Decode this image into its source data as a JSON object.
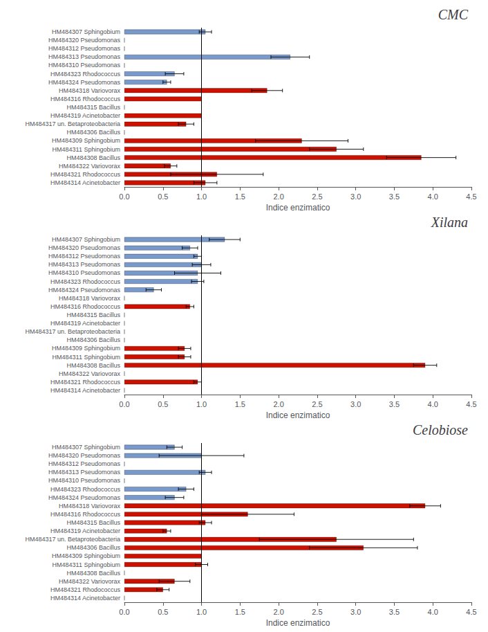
{
  "chart_data": [
    {
      "type": "bar",
      "orientation": "horizontal",
      "grid": false,
      "title": "CMC",
      "xlabel": "Indice enzimatico",
      "xlim": [
        0.0,
        4.5
      ],
      "xticks": [
        {
          "value": 0,
          "label": "0.0"
        },
        0.5,
        {
          "value": 1,
          "label": "1.0"
        },
        1.5,
        {
          "value": 2,
          "label": "2.0"
        },
        2.5,
        {
          "value": 3,
          "label": "3.0"
        },
        3.5,
        {
          "value": 4,
          "label": "4.0"
        },
        4.5
      ],
      "reference_line": 1.0,
      "categories": [
        "HM484307 Sphingobium",
        "HM484320 Pseudomonas",
        "HM484312 Pseudomonas",
        "HM484313 Pseudomonas",
        "HM484310 Pseudomonas",
        "HM484323 Rhodococcus",
        "HM484324 Pseudomonas",
        "HM484318 Variovorax",
        "HM484316 Rhodococcus",
        "HM484315 Bacillus",
        "HM484319 Acinetobacter",
        "HM484317 un. Betaproteobacteria",
        "HM484306 Bacillus",
        "HM484309 Sphingobium",
        "HM484311 Sphingobium",
        "HM484308 Bacillus",
        "HM484322 Variovorax",
        "HM484321 Rhodococcus",
        "HM484314 Acinetobacter"
      ],
      "values": [
        1.05,
        0.0,
        0.0,
        2.15,
        0.0,
        0.65,
        0.55,
        1.85,
        1.0,
        0.0,
        1.0,
        0.8,
        0.0,
        2.3,
        2.75,
        3.85,
        0.6,
        1.2,
        1.05
      ],
      "errors": [
        0.08,
        0.0,
        0.0,
        0.25,
        0.0,
        0.12,
        0.05,
        0.2,
        0.0,
        0.0,
        0.0,
        0.1,
        0.0,
        0.6,
        0.35,
        0.45,
        0.08,
        0.6,
        0.15
      ],
      "colors": [
        "#7799CC",
        "#7799CC",
        "#7799CC",
        "#7799CC",
        "#7799CC",
        "#7799CC",
        "#7799CC",
        "#CC1100",
        "#CC1100",
        "#CC1100",
        "#CC1100",
        "#CC1100",
        "#CC1100",
        "#CC1100",
        "#CC1100",
        "#CC1100",
        "#CC1100",
        "#CC1100",
        "#CC1100"
      ]
    },
    {
      "type": "bar",
      "orientation": "horizontal",
      "grid": false,
      "title": "Xilana",
      "xlabel": "Indice enzimatico",
      "xlim": [
        0.0,
        4.5
      ],
      "xticks": [
        {
          "value": 0,
          "label": "0.0"
        },
        0.5,
        {
          "value": 1,
          "label": "1.0"
        },
        1.5,
        {
          "value": 2,
          "label": "2.0"
        },
        2.5,
        {
          "value": 3,
          "label": "3.0"
        },
        3.5,
        {
          "value": 4,
          "label": "4.0"
        },
        4.5
      ],
      "reference_line": 1.0,
      "categories": [
        "HM484307 Sphingobium",
        "HM484320 Pseudomonas",
        "HM484312 Pseudomonas",
        "HM484313 Pseudomonas",
        "HM484310 Pseudomonas",
        "HM484323 Rhodococcus",
        "HM484324 Pseudomonas",
        "HM484318 Variovorax",
        "HM484316 Rhodococcus",
        "HM484315 Bacillus",
        "HM484319 Acinetobacter",
        "HM484317 un. Betaproteobacteria",
        "HM484306 Bacillus",
        "HM484309 Sphingobium",
        "HM484311 Sphingobium",
        "HM484308 Bacillus",
        "HM484322 Variovorax",
        "HM484321 Rhodococcus",
        "HM484314 Acinetobacter"
      ],
      "values": [
        1.3,
        0.85,
        0.95,
        1.0,
        0.95,
        0.95,
        0.38,
        0.0,
        0.85,
        0.0,
        0.0,
        0.0,
        0.0,
        0.78,
        0.78,
        3.9,
        0.0,
        0.95,
        0.0
      ],
      "errors": [
        0.2,
        0.1,
        0.05,
        0.12,
        0.3,
        0.08,
        0.1,
        0.0,
        0.05,
        0.0,
        0.0,
        0.0,
        0.0,
        0.08,
        0.08,
        0.15,
        0.0,
        0.05,
        0.0
      ],
      "colors": [
        "#7799CC",
        "#7799CC",
        "#7799CC",
        "#7799CC",
        "#7799CC",
        "#7799CC",
        "#7799CC",
        "#7799CC",
        "#CC1100",
        "#CC1100",
        "#CC1100",
        "#CC1100",
        "#CC1100",
        "#CC1100",
        "#CC1100",
        "#CC1100",
        "#CC1100",
        "#CC1100",
        "#CC1100"
      ]
    },
    {
      "type": "bar",
      "orientation": "horizontal",
      "grid": false,
      "title": "Celobiose",
      "xlabel": "Indice enzimatico",
      "xlim": [
        0.0,
        4.5
      ],
      "xticks": [
        {
          "value": 0,
          "label": "0.0"
        },
        0.5,
        {
          "value": 1,
          "label": "1.0"
        },
        1.5,
        {
          "value": 2,
          "label": "2.0"
        },
        2.5,
        {
          "value": 3,
          "label": "3.0"
        },
        3.5,
        {
          "value": 4,
          "label": "4.0"
        },
        4.5
      ],
      "reference_line": 1.0,
      "categories": [
        "HM484307 Sphingobium",
        "HM484320 Pseudomonas",
        "HM484312 Pseudomonas",
        "HM484313 Pseudomonas",
        "HM484310 Pseudomonas",
        "HM484323 Rhodococcus",
        "HM484324 Pseudomonas",
        "HM484318 Variovorax",
        "HM484316 Rhodococcus",
        "HM484315 Bacillus",
        "HM484319 Acinetobacter",
        "HM484317 un. Betaproteobacteria",
        "HM484306 Bacillus",
        "HM484309 Sphingobium",
        "HM484311 Sphingobium",
        "HM484308 Bacillus",
        "HM484322 Variovorax",
        "HM484321 Rhodococcus",
        "HM484314 Acinetobacter"
      ],
      "values": [
        0.65,
        1.0,
        0.0,
        1.05,
        0.0,
        0.8,
        0.65,
        3.9,
        1.6,
        1.05,
        0.55,
        2.75,
        3.1,
        1.0,
        1.0,
        0.0,
        0.65,
        0.5,
        0.0
      ],
      "errors": [
        0.1,
        0.55,
        0.0,
        0.08,
        0.0,
        0.1,
        0.12,
        0.2,
        0.6,
        0.08,
        0.05,
        1.0,
        0.7,
        0.0,
        0.08,
        0.0,
        0.2,
        0.08,
        0.0
      ],
      "colors": [
        "#7799CC",
        "#7799CC",
        "#7799CC",
        "#7799CC",
        "#7799CC",
        "#7799CC",
        "#7799CC",
        "#CC1100",
        "#CC1100",
        "#CC1100",
        "#CC1100",
        "#CC1100",
        "#CC1100",
        "#CC1100",
        "#CC1100",
        "#CC1100",
        "#CC1100",
        "#CC1100",
        "#CC1100"
      ]
    }
  ]
}
